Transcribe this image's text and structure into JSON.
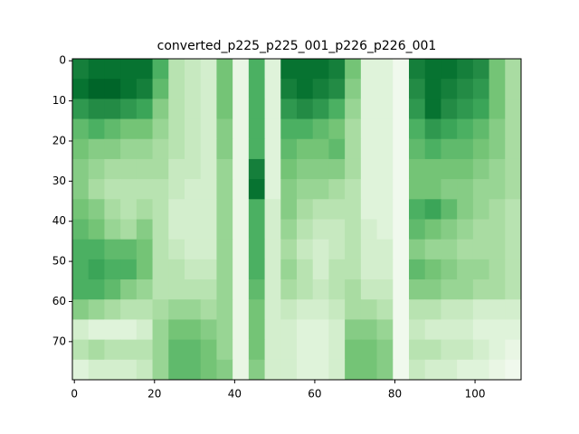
{
  "chart_data": {
    "type": "heatmap",
    "title": "converted_p225_p225_001_p226_p226_001",
    "colormap": "Greens",
    "xlim": [
      -0.5,
      111.5
    ],
    "ylim": [
      79.5,
      -0.5
    ],
    "xticks": [
      0,
      20,
      40,
      60,
      80,
      100
    ],
    "yticks": [
      0,
      10,
      20,
      30,
      40,
      50,
      60,
      70
    ],
    "xbins": [
      -0.5,
      3.5,
      7.5,
      11.5,
      15.5,
      19.5,
      23.5,
      27.5,
      31.5,
      35.5,
      39.5,
      43.5,
      47.5,
      51.5,
      55.5,
      59.5,
      63.5,
      67.5,
      71.5,
      75.5,
      79.5,
      83.5,
      87.5,
      91.5,
      95.5,
      99.5,
      103.5,
      107.5,
      111.5
    ],
    "ybins": [
      -0.5,
      4.5,
      9.5,
      14.5,
      19.5,
      24.5,
      29.5,
      34.5,
      39.5,
      44.5,
      49.5,
      54.5,
      59.5,
      64.5,
      69.5,
      74.5,
      79.5
    ],
    "values": [
      [
        0.8,
        0.85,
        0.85,
        0.85,
        0.85,
        0.6,
        0.3,
        0.25,
        0.2,
        0.5,
        0.1,
        0.6,
        0.15,
        0.85,
        0.85,
        0.85,
        0.8,
        0.5,
        0.15,
        0.15,
        0.05,
        0.8,
        0.85,
        0.85,
        0.8,
        0.75,
        0.5,
        0.35
      ],
      [
        0.85,
        0.9,
        0.9,
        0.85,
        0.8,
        0.55,
        0.3,
        0.25,
        0.2,
        0.5,
        0.1,
        0.6,
        0.15,
        0.8,
        0.85,
        0.8,
        0.75,
        0.45,
        0.15,
        0.15,
        0.05,
        0.75,
        0.85,
        0.8,
        0.75,
        0.7,
        0.5,
        0.35
      ],
      [
        0.7,
        0.75,
        0.75,
        0.7,
        0.65,
        0.45,
        0.3,
        0.25,
        0.2,
        0.5,
        0.1,
        0.6,
        0.15,
        0.7,
        0.75,
        0.7,
        0.6,
        0.4,
        0.15,
        0.15,
        0.05,
        0.7,
        0.85,
        0.75,
        0.7,
        0.65,
        0.5,
        0.35
      ],
      [
        0.55,
        0.6,
        0.55,
        0.5,
        0.5,
        0.4,
        0.3,
        0.25,
        0.2,
        0.45,
        0.1,
        0.6,
        0.15,
        0.6,
        0.6,
        0.55,
        0.5,
        0.35,
        0.15,
        0.15,
        0.05,
        0.6,
        0.7,
        0.65,
        0.6,
        0.55,
        0.45,
        0.35
      ],
      [
        0.5,
        0.45,
        0.45,
        0.4,
        0.4,
        0.35,
        0.3,
        0.25,
        0.2,
        0.45,
        0.1,
        0.6,
        0.15,
        0.55,
        0.5,
        0.5,
        0.55,
        0.35,
        0.15,
        0.15,
        0.05,
        0.55,
        0.6,
        0.55,
        0.55,
        0.5,
        0.45,
        0.35
      ],
      [
        0.45,
        0.4,
        0.35,
        0.35,
        0.35,
        0.35,
        0.25,
        0.25,
        0.2,
        0.4,
        0.1,
        0.8,
        0.15,
        0.5,
        0.45,
        0.45,
        0.45,
        0.35,
        0.15,
        0.15,
        0.05,
        0.5,
        0.5,
        0.5,
        0.5,
        0.45,
        0.4,
        0.35
      ],
      [
        0.45,
        0.35,
        0.3,
        0.3,
        0.3,
        0.3,
        0.25,
        0.2,
        0.2,
        0.4,
        0.1,
        0.85,
        0.15,
        0.45,
        0.4,
        0.4,
        0.35,
        0.3,
        0.15,
        0.15,
        0.05,
        0.5,
        0.5,
        0.45,
        0.45,
        0.4,
        0.4,
        0.35
      ],
      [
        0.5,
        0.45,
        0.35,
        0.3,
        0.35,
        0.3,
        0.2,
        0.2,
        0.2,
        0.4,
        0.1,
        0.6,
        0.2,
        0.45,
        0.35,
        0.3,
        0.3,
        0.3,
        0.15,
        0.15,
        0.05,
        0.6,
        0.65,
        0.55,
        0.45,
        0.4,
        0.35,
        0.3
      ],
      [
        0.55,
        0.5,
        0.4,
        0.35,
        0.45,
        0.3,
        0.2,
        0.2,
        0.2,
        0.4,
        0.1,
        0.6,
        0.2,
        0.4,
        0.3,
        0.25,
        0.25,
        0.3,
        0.2,
        0.15,
        0.05,
        0.55,
        0.5,
        0.45,
        0.4,
        0.35,
        0.35,
        0.3
      ],
      [
        0.6,
        0.6,
        0.55,
        0.55,
        0.5,
        0.3,
        0.25,
        0.2,
        0.2,
        0.4,
        0.1,
        0.6,
        0.2,
        0.35,
        0.25,
        0.2,
        0.25,
        0.3,
        0.2,
        0.2,
        0.05,
        0.45,
        0.4,
        0.4,
        0.35,
        0.35,
        0.35,
        0.3
      ],
      [
        0.6,
        0.65,
        0.6,
        0.6,
        0.5,
        0.3,
        0.3,
        0.25,
        0.25,
        0.4,
        0.1,
        0.6,
        0.2,
        0.4,
        0.3,
        0.2,
        0.3,
        0.3,
        0.2,
        0.2,
        0.05,
        0.55,
        0.5,
        0.45,
        0.4,
        0.4,
        0.35,
        0.3
      ],
      [
        0.6,
        0.6,
        0.55,
        0.45,
        0.4,
        0.3,
        0.3,
        0.3,
        0.3,
        0.4,
        0.1,
        0.55,
        0.2,
        0.35,
        0.3,
        0.25,
        0.3,
        0.35,
        0.25,
        0.25,
        0.05,
        0.45,
        0.45,
        0.4,
        0.4,
        0.35,
        0.35,
        0.3
      ],
      [
        0.45,
        0.4,
        0.35,
        0.3,
        0.3,
        0.35,
        0.4,
        0.4,
        0.35,
        0.4,
        0.1,
        0.5,
        0.2,
        0.25,
        0.2,
        0.2,
        0.25,
        0.35,
        0.35,
        0.3,
        0.05,
        0.3,
        0.3,
        0.25,
        0.25,
        0.2,
        0.2,
        0.2
      ],
      [
        0.2,
        0.15,
        0.15,
        0.15,
        0.2,
        0.4,
        0.5,
        0.5,
        0.45,
        0.4,
        0.1,
        0.5,
        0.2,
        0.2,
        0.15,
        0.15,
        0.2,
        0.45,
        0.45,
        0.4,
        0.05,
        0.25,
        0.2,
        0.2,
        0.2,
        0.15,
        0.15,
        0.15
      ],
      [
        0.3,
        0.35,
        0.3,
        0.3,
        0.3,
        0.4,
        0.55,
        0.55,
        0.5,
        0.4,
        0.1,
        0.5,
        0.2,
        0.2,
        0.15,
        0.15,
        0.2,
        0.5,
        0.5,
        0.45,
        0.05,
        0.3,
        0.3,
        0.25,
        0.25,
        0.2,
        0.15,
        0.1
      ],
      [
        0.15,
        0.2,
        0.2,
        0.2,
        0.25,
        0.4,
        0.55,
        0.55,
        0.5,
        0.45,
        0.1,
        0.45,
        0.2,
        0.2,
        0.15,
        0.15,
        0.2,
        0.5,
        0.5,
        0.45,
        0.05,
        0.25,
        0.2,
        0.2,
        0.15,
        0.15,
        0.1,
        0.05
      ]
    ]
  }
}
